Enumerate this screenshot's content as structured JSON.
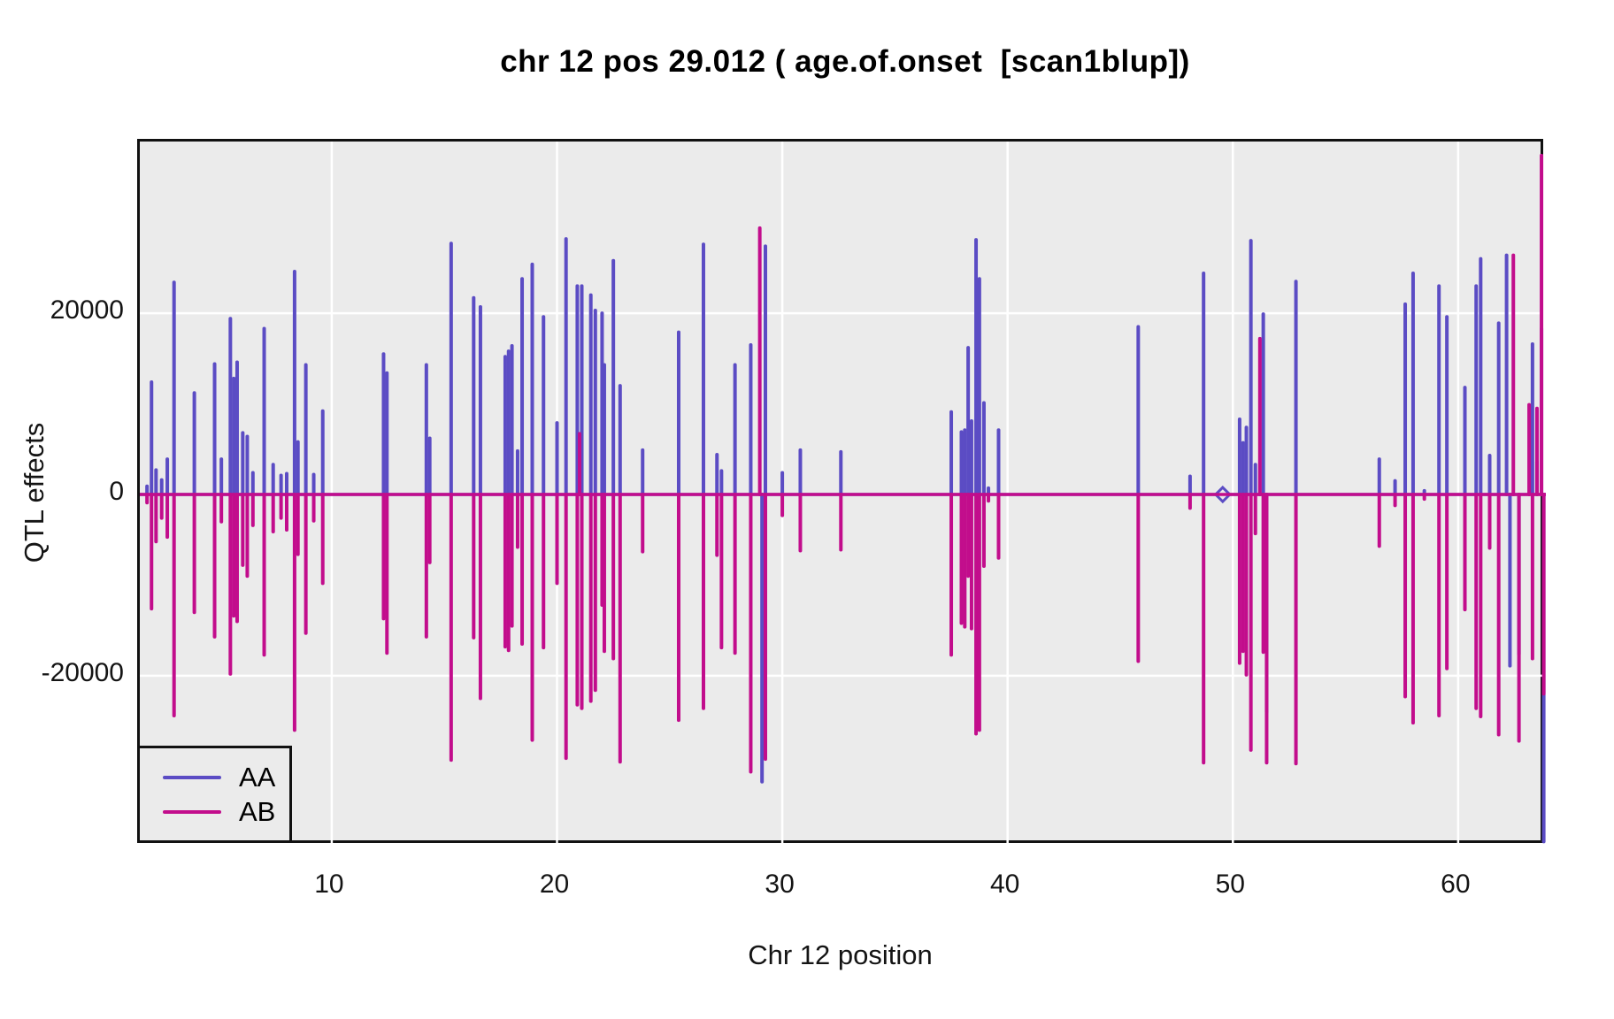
{
  "window": {
    "title": "chr 12 pos 29.012 ( age.of.onset  [scan1blup])"
  },
  "colors": {
    "AA": "#5B4CC4",
    "AB": "#C20D8C",
    "panel_bg": "#EBEBEB",
    "grid": "#FFFFFF",
    "border": "#111111",
    "text": "#141414"
  },
  "legend": {
    "entries": [
      {
        "label": "AA",
        "color": "#5B4CC4"
      },
      {
        "label": "AB",
        "color": "#C20D8C"
      }
    ]
  },
  "chart_data": {
    "type": "line",
    "subtype": "vertical-spike-effects-plot",
    "title": "chr 12 pos 29.012 ( age.of.onset  [scan1blup])",
    "xlabel": "Chr 12 position",
    "ylabel": "QTL effects",
    "xlim": [
      1.48,
      63.894
    ],
    "ylim": [
      -38750,
      38950
    ],
    "xticks": [
      10,
      20,
      30,
      40,
      50,
      60
    ],
    "yticks": [
      -20000,
      0,
      20000
    ],
    "grid": true,
    "legend_position": "bottom-left",
    "baseline": 0,
    "diamond_marker": {
      "x": 49.55,
      "y": 0
    },
    "series_names": [
      "AA",
      "AB"
    ],
    "markers": [
      [
        1.8,
        900,
        -900
      ],
      [
        2.0,
        12400,
        -12600
      ],
      [
        2.2,
        2700,
        -5200
      ],
      [
        2.45,
        1600,
        -2600
      ],
      [
        2.7,
        3900,
        -4700
      ],
      [
        3.0,
        23400,
        -24400
      ],
      [
        3.9,
        11200,
        -13000
      ],
      [
        4.8,
        14400,
        -15700
      ],
      [
        5.1,
        3900,
        -3000
      ],
      [
        5.5,
        19400,
        -19800
      ],
      [
        5.65,
        12800,
        -13400
      ],
      [
        5.8,
        14600,
        -14000
      ],
      [
        6.05,
        6800,
        -7800
      ],
      [
        6.25,
        6400,
        -9000
      ],
      [
        6.5,
        2400,
        -3400
      ],
      [
        7.0,
        18300,
        -17700
      ],
      [
        7.4,
        3300,
        -4100
      ],
      [
        7.75,
        2100,
        -2600
      ],
      [
        8.0,
        2300,
        -3900
      ],
      [
        8.35,
        24600,
        -26000
      ],
      [
        8.5,
        5800,
        -6600
      ],
      [
        8.85,
        14300,
        -15300
      ],
      [
        9.2,
        2200,
        -2900
      ],
      [
        9.6,
        9200,
        -9800
      ],
      [
        12.3,
        15500,
        -13700
      ],
      [
        12.45,
        13400,
        -17500
      ],
      [
        14.2,
        14300,
        -15700
      ],
      [
        14.35,
        6200,
        -7500
      ],
      [
        15.3,
        27700,
        -29300
      ],
      [
        16.3,
        21700,
        -15800
      ],
      [
        16.6,
        20700,
        -22500
      ],
      [
        17.7,
        15200,
        -16800
      ],
      [
        17.85,
        15800,
        -17200
      ],
      [
        18.0,
        16400,
        -14500
      ],
      [
        18.25,
        4800,
        -5800
      ],
      [
        18.45,
        23800,
        -16500
      ],
      [
        18.9,
        25400,
        -27100
      ],
      [
        19.4,
        19600,
        -16900
      ],
      [
        20.0,
        7900,
        -9800
      ],
      [
        20.4,
        28200,
        -29100
      ],
      [
        20.9,
        23000,
        -23200
      ],
      [
        21.0,
        null,
        6700
      ],
      [
        21.1,
        23000,
        -23600
      ],
      [
        21.5,
        22000,
        -22800
      ],
      [
        21.7,
        20300,
        -21600
      ],
      [
        22.0,
        20000,
        -12200
      ],
      [
        22.1,
        14300,
        -17300
      ],
      [
        22.5,
        25800,
        -18100
      ],
      [
        22.8,
        12000,
        -29500
      ],
      [
        23.8,
        4900,
        -6300
      ],
      [
        25.4,
        17900,
        -24900
      ],
      [
        26.5,
        27600,
        -23600
      ],
      [
        27.1,
        4400,
        -6700
      ],
      [
        27.3,
        2600,
        -16900
      ],
      [
        27.9,
        14300,
        -17500
      ],
      [
        28.6,
        16500,
        -30600
      ],
      [
        29.0,
        null,
        29400
      ],
      [
        29.1,
        -31700,
        null
      ],
      [
        29.25,
        27400,
        -29200
      ],
      [
        30.0,
        2400,
        -2300
      ],
      [
        30.8,
        4900,
        -6200
      ],
      [
        32.6,
        4700,
        -6100
      ],
      [
        37.5,
        9100,
        -17700
      ],
      [
        37.95,
        6900,
        -14200
      ],
      [
        38.1,
        7100,
        -14600
      ],
      [
        38.25,
        16200,
        -9000
      ],
      [
        38.4,
        8100,
        -14800
      ],
      [
        38.6,
        28100,
        -26400
      ],
      [
        38.75,
        23800,
        -26000
      ],
      [
        38.95,
        10100,
        -7900
      ],
      [
        39.15,
        700,
        -700
      ],
      [
        39.6,
        7100,
        -7000
      ],
      [
        45.8,
        18500,
        -18400
      ],
      [
        48.1,
        2000,
        -1500
      ],
      [
        48.7,
        24400,
        -29600
      ],
      [
        50.3,
        8300,
        -18600
      ],
      [
        50.45,
        5700,
        -17300
      ],
      [
        50.6,
        7400,
        -19900
      ],
      [
        50.8,
        28000,
        -28200
      ],
      [
        51.0,
        3300,
        -4300
      ],
      [
        51.2,
        null,
        17200
      ],
      [
        51.35,
        19900,
        -17400
      ],
      [
        51.5,
        -24000,
        -29600
      ],
      [
        52.8,
        23500,
        -29700
      ],
      [
        56.5,
        3900,
        -5700
      ],
      [
        57.2,
        1500,
        -1200
      ],
      [
        57.65,
        21000,
        -22300
      ],
      [
        58.0,
        24400,
        -25200
      ],
      [
        58.5,
        400,
        -500
      ],
      [
        59.15,
        23000,
        -24400
      ],
      [
        59.5,
        19600,
        -19200
      ],
      [
        60.3,
        11800,
        -12700
      ],
      [
        60.8,
        23000,
        -23600
      ],
      [
        61.0,
        26000,
        -24500
      ],
      [
        61.4,
        4300,
        -5900
      ],
      [
        61.8,
        18900,
        -26500
      ],
      [
        62.15,
        26400,
        null
      ],
      [
        62.3,
        -18900,
        null
      ],
      [
        62.45,
        null,
        26400
      ],
      [
        62.7,
        -17600,
        -27200
      ],
      [
        63.15,
        null,
        9900
      ],
      [
        63.3,
        16600,
        -18100
      ],
      [
        63.5,
        3600,
        9500
      ],
      [
        63.7,
        18300,
        37400
      ],
      [
        63.8,
        -38300,
        -22000
      ]
    ]
  }
}
